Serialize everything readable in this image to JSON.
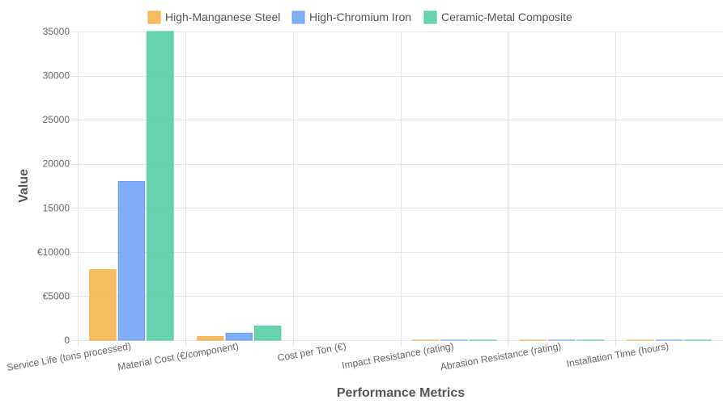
{
  "chart_data": {
    "type": "bar",
    "categories": [
      "Service Life (tons processed)",
      "Material Cost (€/component)",
      "Cost per Ton (€)",
      "Impact Resistance (rating)",
      "Abrasion Resistance (rating)",
      "Installation Time (hours)"
    ],
    "series": [
      {
        "name": "High-Manganese Steel",
        "values": [
          8000,
          400,
          0.05,
          8,
          6,
          4
        ],
        "color": "#f5b041"
      },
      {
        "name": "High-Chromium Iron",
        "values": [
          18000,
          800,
          0.044,
          6,
          8,
          5
        ],
        "color": "#6a9ff5"
      },
      {
        "name": "Ceramic-Metal Composite",
        "values": [
          35000,
          1600,
          0.046,
          7,
          9,
          6
        ],
        "color": "#4ccda0"
      }
    ],
    "xlabel": "Performance Metrics",
    "ylabel": "Value",
    "ylim": [
      0,
      35000
    ],
    "yticks": [
      {
        "value": 0,
        "label": "0"
      },
      {
        "value": 5000,
        "label": "€5000"
      },
      {
        "value": 10000,
        "label": "€10000"
      },
      {
        "value": 15000,
        "label": "15000"
      },
      {
        "value": 20000,
        "label": "20000"
      },
      {
        "value": 25000,
        "label": "25000"
      },
      {
        "value": 30000,
        "label": "30000"
      },
      {
        "value": 35000,
        "label": "35000"
      }
    ],
    "grid": true,
    "legend": "top-center"
  }
}
